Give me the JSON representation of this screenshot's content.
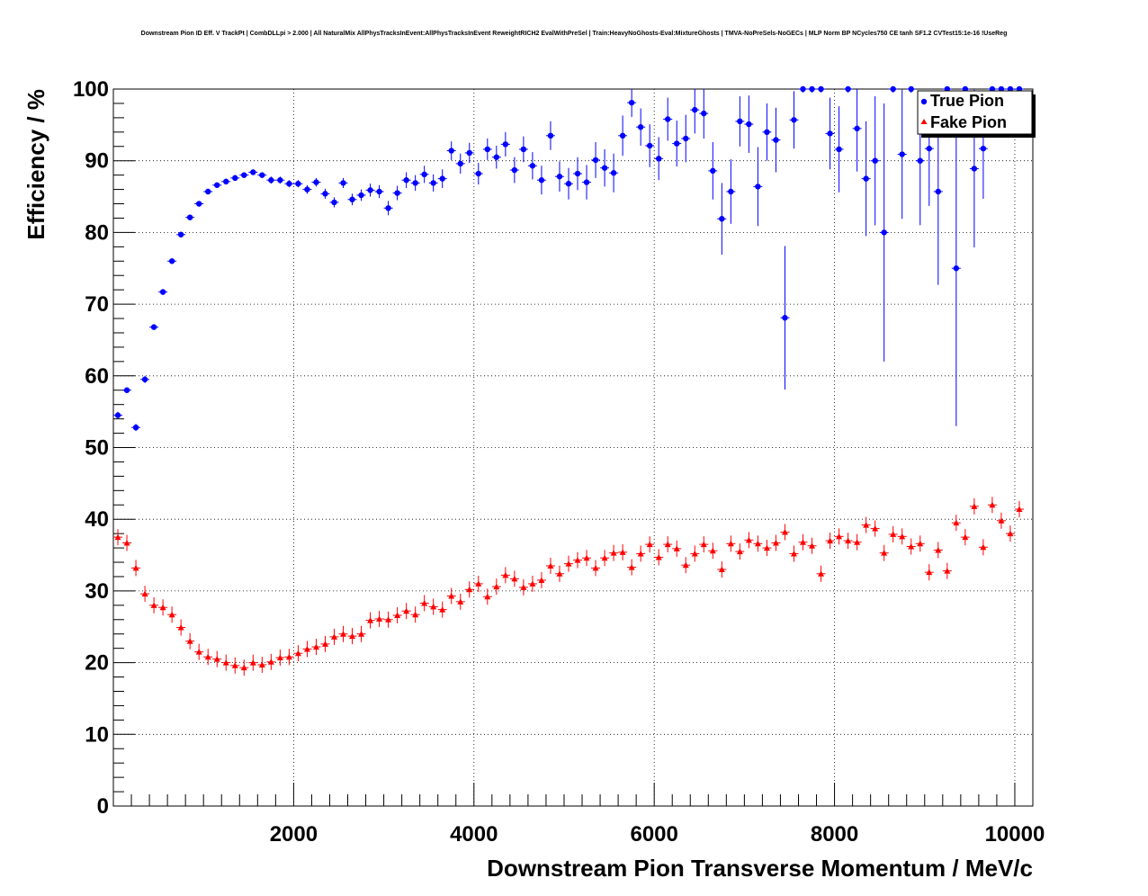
{
  "chart_data": {
    "type": "scatter",
    "title": "Downstream Pion ID Eff. V TrackPt | CombDLLpi > 2.000 | All NaturalMix AllPhysTracksInEvent:AllPhysTracksInEvent ReweightRICH2 EvalWithPreSel | Train:HeavyNoGhosts-Eval:MixtureGhosts | TMVA-NoPreSels-NoGECs | MLP Norm BP NCycles750 CE tanh SF1.2 CVTest15:1e-16 !UseReg",
    "xlabel": "Downstream Pion Transverse Momentum / MeV/c",
    "ylabel": "Efficiency / %",
    "xlim": [
      0,
      10200
    ],
    "ylim": [
      0,
      100
    ],
    "x_ticks": [
      2000,
      4000,
      6000,
      8000,
      10000
    ],
    "y_ticks": [
      0,
      10,
      20,
      30,
      40,
      50,
      60,
      70,
      80,
      90,
      100
    ],
    "grid": true,
    "legend_position": "top-right",
    "bin_width": 100,
    "series": [
      {
        "name": "True Pion",
        "color": "#0000ff",
        "marker": "circle",
        "x": [
          50,
          150,
          250,
          350,
          450,
          550,
          650,
          750,
          850,
          950,
          1050,
          1150,
          1250,
          1350,
          1450,
          1550,
          1650,
          1750,
          1850,
          1950,
          2050,
          2150,
          2250,
          2350,
          2450,
          2550,
          2650,
          2750,
          2850,
          2950,
          3050,
          3150,
          3250,
          3350,
          3450,
          3550,
          3650,
          3750,
          3850,
          3950,
          4050,
          4150,
          4250,
          4350,
          4450,
          4550,
          4650,
          4750,
          4850,
          4950,
          5050,
          5150,
          5250,
          5350,
          5450,
          5550,
          5650,
          5750,
          5850,
          5950,
          6050,
          6150,
          6250,
          6350,
          6450,
          6550,
          6650,
          6750,
          6850,
          6950,
          7050,
          7150,
          7250,
          7350,
          7450,
          7550,
          7650,
          7750,
          7850,
          7950,
          8050,
          8150,
          8250,
          8350,
          8450,
          8550,
          8650,
          8750,
          8850,
          8950,
          9050,
          9150,
          9250,
          9350,
          9450,
          9550,
          9650,
          9750,
          9850,
          9950,
          10050
        ],
        "y": [
          54.5,
          58.0,
          52.8,
          59.5,
          66.8,
          71.7,
          76.0,
          79.7,
          82.1,
          84.0,
          85.7,
          86.6,
          87.1,
          87.6,
          88.0,
          88.4,
          88.0,
          87.3,
          87.3,
          86.8,
          86.8,
          86.0,
          87.0,
          85.4,
          84.2,
          86.9,
          84.6,
          85.2,
          85.9,
          85.7,
          83.4,
          85.5,
          87.3,
          86.9,
          88.1,
          86.9,
          87.5,
          91.4,
          89.6,
          91.1,
          88.2,
          91.6,
          90.5,
          92.3,
          88.7,
          91.6,
          89.3,
          87.3,
          93.5,
          87.8,
          86.8,
          88.2,
          87.0,
          90.1,
          89.0,
          88.3,
          93.5,
          98.1,
          94.7,
          92.1,
          90.3,
          95.8,
          92.4,
          93.1,
          97.1,
          96.6,
          88.6,
          81.9,
          85.7,
          95.5,
          95.1,
          86.4,
          94.0,
          92.9,
          68.1,
          95.7,
          100.0,
          100.0,
          100.0,
          93.8,
          91.6,
          100.0,
          94.5,
          87.5,
          90.0,
          80.0,
          100.0,
          90.9,
          100.0,
          90.0,
          91.7,
          85.7,
          100.0,
          75.0,
          100.0,
          88.9,
          91.7,
          100.0,
          100.0,
          100.0,
          100.0
        ],
        "yerr": [
          0.5,
          0.4,
          0.5,
          0.5,
          0.4,
          0.4,
          0.4,
          0.4,
          0.4,
          0.4,
          0.4,
          0.4,
          0.4,
          0.4,
          0.4,
          0.4,
          0.4,
          0.5,
          0.5,
          0.5,
          0.5,
          0.6,
          0.6,
          0.7,
          0.7,
          0.7,
          0.8,
          0.8,
          0.9,
          0.9,
          1.0,
          1.0,
          1.1,
          1.1,
          1.2,
          1.2,
          1.3,
          1.3,
          1.4,
          1.4,
          1.5,
          1.5,
          1.6,
          1.7,
          1.8,
          1.8,
          1.9,
          2.0,
          2.0,
          2.1,
          2.2,
          2.3,
          2.4,
          2.5,
          2.6,
          2.7,
          2.8,
          2.0,
          2.6,
          3.0,
          3.0,
          3.0,
          3.2,
          3.3,
          3.3,
          3.5,
          4.0,
          5.0,
          4.5,
          3.5,
          4.0,
          5.5,
          4.0,
          4.5,
          10.0,
          4.0,
          0.5,
          0.5,
          0.5,
          5.0,
          6.0,
          0.5,
          6.0,
          8.0,
          9.0,
          18.0,
          0.5,
          9.0,
          0.5,
          9.0,
          8.0,
          13.0,
          0.5,
          22.0,
          0.5,
          11.0,
          7.0,
          0.5,
          0.5,
          0.5,
          0.5
        ]
      },
      {
        "name": "Fake Pion",
        "color": "#ff0000",
        "marker": "triangle",
        "x": [
          50,
          150,
          250,
          350,
          450,
          550,
          650,
          750,
          850,
          950,
          1050,
          1150,
          1250,
          1350,
          1450,
          1550,
          1650,
          1750,
          1850,
          1950,
          2050,
          2150,
          2250,
          2350,
          2450,
          2550,
          2650,
          2750,
          2850,
          2950,
          3050,
          3150,
          3250,
          3350,
          3450,
          3550,
          3650,
          3750,
          3850,
          3950,
          4050,
          4150,
          4250,
          4350,
          4450,
          4550,
          4650,
          4750,
          4850,
          4950,
          5050,
          5150,
          5250,
          5350,
          5450,
          5550,
          5650,
          5750,
          5850,
          5950,
          6050,
          6150,
          6250,
          6350,
          6450,
          6550,
          6650,
          6750,
          6850,
          6950,
          7050,
          7150,
          7250,
          7350,
          7450,
          7550,
          7650,
          7750,
          7850,
          7950,
          8050,
          8150,
          8250,
          8350,
          8450,
          8550,
          8650,
          8750,
          8850,
          8950,
          9050,
          9150,
          9250,
          9350,
          9450,
          9550,
          9650,
          9750,
          9850,
          9950,
          10050
        ],
        "y": [
          37.5,
          36.7,
          33.2,
          29.6,
          28.0,
          27.7,
          26.7,
          24.9,
          23.0,
          21.5,
          20.8,
          20.5,
          20.0,
          19.6,
          19.3,
          20.0,
          19.7,
          20.1,
          20.7,
          20.8,
          21.3,
          21.9,
          22.2,
          22.6,
          23.6,
          24.0,
          23.7,
          24.0,
          25.9,
          26.1,
          26.0,
          26.6,
          27.2,
          26.7,
          28.3,
          27.8,
          27.4,
          29.3,
          28.5,
          30.2,
          31.0,
          29.2,
          30.6,
          32.2,
          31.7,
          30.5,
          31.0,
          31.5,
          33.5,
          32.4,
          33.8,
          34.3,
          34.6,
          33.2,
          34.6,
          35.3,
          35.4,
          33.3,
          35.2,
          36.5,
          34.7,
          36.5,
          35.9,
          33.6,
          35.2,
          36.5,
          35.6,
          33.0,
          36.6,
          35.5,
          37.1,
          36.6,
          36.0,
          36.7,
          38.2,
          35.2,
          36.8,
          36.3,
          32.4,
          37.0,
          37.6,
          37.0,
          36.8,
          39.2,
          38.7,
          35.3,
          37.9,
          37.6,
          36.2,
          36.6,
          32.6,
          35.7,
          32.8,
          39.5,
          37.5,
          41.8,
          36.1,
          42.0,
          39.8,
          38.0,
          41.4
        ]
      }
    ]
  }
}
